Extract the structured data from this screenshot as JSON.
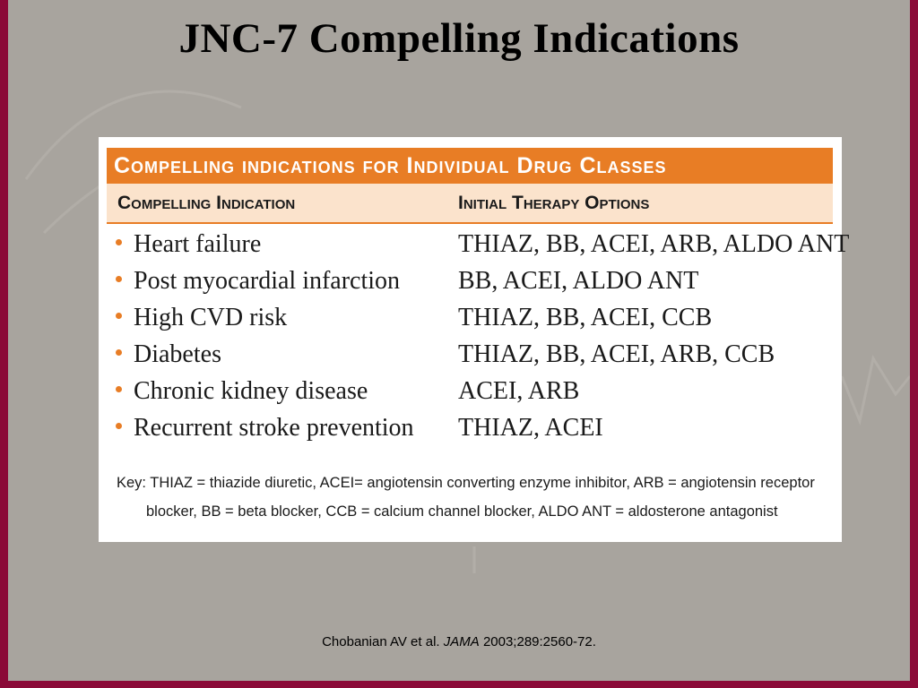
{
  "title": "JNC-7 Compelling Indications",
  "table": {
    "banner": "Compelling indications for Individual Drug Classes",
    "col1_header": "Compelling Indication",
    "col2_header": "Initial Therapy Options",
    "rows": [
      {
        "indication": "Heart failure",
        "therapy": "THIAZ, BB, ACEI, ARB, ALDO ANT"
      },
      {
        "indication": "Post myocardial infarction",
        "therapy": "BB, ACEI, ALDO ANT"
      },
      {
        "indication": "High CVD risk",
        "therapy": "THIAZ, BB, ACEI, CCB"
      },
      {
        "indication": "Diabetes",
        "therapy": "THIAZ, BB, ACEI, ARB, CCB"
      },
      {
        "indication": "Chronic kidney disease",
        "therapy": "ACEI, ARB"
      },
      {
        "indication": "Recurrent stroke prevention",
        "therapy": "THIAZ, ACEI"
      }
    ],
    "key_line1": "Key: THIAZ = thiazide diuretic, ACEI= angiotensin converting enzyme inhibitor, ARB = angiotensin receptor",
    "key_line2": "blocker, BB = beta blocker, CCB = calcium channel blocker, ALDO ANT = aldosterone antagonist"
  },
  "citation": {
    "authors": "Chobanian AV et al.",
    "journal": "JAMA",
    "ref": "2003;289:2560-72."
  },
  "colors": {
    "frame": "#8b0a38",
    "slide_bg": "#a8a49e",
    "accent": "#e87d25",
    "header_bg": "#fbe3cc"
  }
}
